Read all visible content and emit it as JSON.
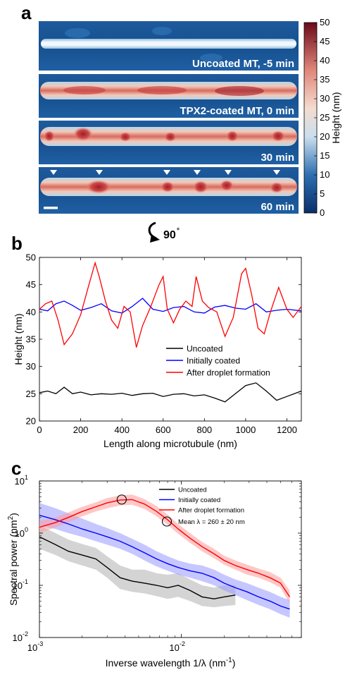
{
  "panel_a": {
    "letter": "a",
    "images": [
      {
        "label": "Uncoated MT, -5 min"
      },
      {
        "label": "TPX2-coated MT, 0 min"
      },
      {
        "label": "30 min"
      },
      {
        "label": "60 min"
      }
    ],
    "colorbar": {
      "label": "Height (nm)",
      "ticks": [
        "0",
        "5",
        "10",
        "15",
        "20",
        "25",
        "30",
        "35",
        "40",
        "45",
        "50"
      ],
      "range": [
        0,
        50
      ]
    },
    "rotation_label": "90",
    "rotation_degree_mark": "°"
  },
  "chart_data": [
    {
      "panel": "b",
      "type": "line",
      "xlabel": "Length along microtubule (nm)",
      "ylabel": "Height (nm)",
      "xlim": [
        0,
        1270
      ],
      "ylim": [
        20,
        50
      ],
      "xticks": [
        0,
        200,
        400,
        600,
        800,
        1000,
        1200
      ],
      "yticks": [
        20,
        25,
        30,
        35,
        40,
        45,
        50
      ],
      "legend_position": "lower-right",
      "grid": false,
      "series": [
        {
          "name": "Uncoated",
          "color": "#000000",
          "x": [
            0,
            40,
            80,
            120,
            160,
            200,
            250,
            300,
            350,
            400,
            450,
            500,
            550,
            600,
            650,
            700,
            750,
            800,
            850,
            900,
            950,
            1000,
            1050,
            1100,
            1150,
            1200,
            1270
          ],
          "y": [
            25.2,
            25.5,
            25.0,
            26.2,
            25.0,
            25.3,
            24.8,
            25.0,
            24.9,
            25.1,
            24.7,
            25.0,
            25.1,
            24.5,
            24.9,
            25.0,
            24.6,
            24.8,
            24.2,
            23.5,
            25.0,
            26.5,
            27.0,
            25.5,
            23.8,
            24.5,
            25.5
          ]
        },
        {
          "name": "Initially coated",
          "color": "#0000ff",
          "x": [
            0,
            40,
            80,
            120,
            160,
            200,
            250,
            300,
            350,
            400,
            450,
            500,
            550,
            600,
            650,
            700,
            750,
            800,
            850,
            900,
            950,
            1000,
            1050,
            1100,
            1150,
            1200,
            1270
          ],
          "y": [
            40.5,
            40.2,
            41.5,
            42.0,
            41.2,
            40.3,
            40.8,
            41.5,
            40.2,
            39.8,
            41.0,
            42.5,
            40.5,
            40.1,
            40.8,
            41.0,
            40.0,
            39.8,
            40.9,
            41.2,
            40.7,
            40.5,
            41.5,
            40.0,
            40.3,
            40.5,
            40.2
          ]
        },
        {
          "name": "After droplet formation",
          "color": "#ff0000",
          "x": [
            0,
            30,
            60,
            90,
            120,
            160,
            200,
            240,
            270,
            290,
            320,
            350,
            380,
            410,
            440,
            470,
            500,
            540,
            580,
            600,
            620,
            650,
            680,
            710,
            740,
            760,
            790,
            820,
            860,
            900,
            940,
            980,
            1000,
            1030,
            1060,
            1090,
            1120,
            1160,
            1200,
            1230,
            1270
          ],
          "y": [
            40.5,
            41.5,
            42.0,
            38.5,
            34.0,
            36.0,
            39.5,
            45.0,
            49.0,
            46.5,
            42.0,
            38.5,
            37.0,
            41.0,
            40.0,
            33.5,
            37.5,
            41.0,
            45.0,
            46.5,
            40.5,
            38.0,
            40.5,
            42.0,
            41.0,
            46.5,
            42.0,
            40.8,
            40.0,
            35.5,
            39.0,
            47.0,
            48.0,
            43.0,
            37.0,
            36.0,
            40.0,
            44.5,
            40.5,
            39.0,
            41.0
          ]
        }
      ]
    },
    {
      "panel": "c",
      "type": "line",
      "xscale": "log",
      "yscale": "log",
      "xlabel": "Inverse wavelength 1/λ (nm",
      "xlabel_sup": "-1",
      "xlabel_end": ")",
      "ylabel": "Spectral power (nm",
      "ylabel_sup": "2",
      "ylabel_end": ")",
      "xlim": [
        0.001,
        0.07
      ],
      "ylim": [
        0.01,
        10
      ],
      "xticks": [
        {
          "base": "10",
          "exp": "-3",
          "value": 0.001
        },
        {
          "base": "10",
          "exp": "-2",
          "value": 0.01
        }
      ],
      "yticks": [
        {
          "base": "10",
          "exp": "-2",
          "value": 0.01
        },
        {
          "base": "10",
          "exp": "-1",
          "value": 0.1
        },
        {
          "base": "10",
          "exp": "0",
          "value": 1
        },
        {
          "base": "10",
          "exp": "1",
          "value": 10
        }
      ],
      "legend_position": "top-right",
      "grid": false,
      "series": [
        {
          "name": "Uncoated",
          "color": "#000000",
          "band_color": "#b0b0b0",
          "x": [
            0.001,
            0.0013,
            0.0016,
            0.002,
            0.0025,
            0.003,
            0.0037,
            0.0045,
            0.0055,
            0.0067,
            0.008,
            0.0095,
            0.0115,
            0.014,
            0.017,
            0.02,
            0.024
          ],
          "y": [
            0.85,
            0.6,
            0.45,
            0.38,
            0.32,
            0.22,
            0.14,
            0.12,
            0.11,
            0.1,
            0.09,
            0.1,
            0.08,
            0.06,
            0.055,
            0.06,
            0.065
          ],
          "lower": [
            0.5,
            0.38,
            0.29,
            0.24,
            0.2,
            0.14,
            0.085,
            0.075,
            0.07,
            0.062,
            0.055,
            0.06,
            0.05,
            0.04,
            0.038,
            0.04,
            0.042
          ],
          "upper": [
            1.4,
            1.0,
            0.75,
            0.62,
            0.52,
            0.36,
            0.24,
            0.2,
            0.2,
            0.17,
            0.16,
            0.17,
            0.13,
            0.1,
            0.09,
            0.1,
            0.1
          ]
        },
        {
          "name": "Initially coated",
          "color": "#0000ff",
          "band_color": "#9999ff",
          "x": [
            0.001,
            0.0013,
            0.0016,
            0.002,
            0.0025,
            0.003,
            0.0037,
            0.0045,
            0.0055,
            0.0067,
            0.008,
            0.0095,
            0.0115,
            0.014,
            0.017,
            0.02,
            0.024,
            0.029,
            0.035,
            0.042,
            0.05,
            0.058
          ],
          "y": [
            2.2,
            1.8,
            1.5,
            1.2,
            1.0,
            0.85,
            0.7,
            0.55,
            0.42,
            0.32,
            0.26,
            0.22,
            0.19,
            0.17,
            0.14,
            0.11,
            0.09,
            0.075,
            0.06,
            0.05,
            0.04,
            0.035
          ],
          "lower": [
            1.4,
            1.2,
            1.0,
            0.85,
            0.7,
            0.6,
            0.5,
            0.4,
            0.3,
            0.23,
            0.19,
            0.16,
            0.14,
            0.12,
            0.1,
            0.08,
            0.065,
            0.052,
            0.042,
            0.035,
            0.028,
            0.024
          ],
          "upper": [
            3.8,
            3.0,
            2.4,
            1.9,
            1.5,
            1.25,
            1.0,
            0.78,
            0.6,
            0.45,
            0.36,
            0.3,
            0.26,
            0.24,
            0.2,
            0.16,
            0.13,
            0.11,
            0.09,
            0.075,
            0.06,
            0.052
          ]
        },
        {
          "name": "After droplet formation",
          "color": "#ff0000",
          "band_color": "#ff9999",
          "x": [
            0.001,
            0.0013,
            0.0016,
            0.002,
            0.0025,
            0.003,
            0.0037,
            0.0045,
            0.0055,
            0.0067,
            0.008,
            0.0095,
            0.0115,
            0.014,
            0.017,
            0.02,
            0.024,
            0.029,
            0.035,
            0.042,
            0.05,
            0.058
          ],
          "y": [
            1.3,
            1.6,
            2.0,
            2.6,
            3.2,
            3.8,
            4.3,
            4.4,
            3.6,
            2.6,
            1.8,
            1.2,
            0.8,
            0.55,
            0.4,
            0.3,
            0.24,
            0.2,
            0.17,
            0.14,
            0.11,
            0.06
          ],
          "lower": [
            1.0,
            1.3,
            1.6,
            2.1,
            2.6,
            3.0,
            3.4,
            3.5,
            2.9,
            2.1,
            1.45,
            0.97,
            0.65,
            0.45,
            0.33,
            0.25,
            0.2,
            0.16,
            0.14,
            0.115,
            0.09,
            0.045
          ],
          "upper": [
            1.7,
            2.0,
            2.5,
            3.2,
            3.9,
            4.7,
            5.3,
            5.5,
            4.5,
            3.3,
            2.25,
            1.5,
            1.0,
            0.68,
            0.5,
            0.37,
            0.3,
            0.25,
            0.21,
            0.18,
            0.14,
            0.08
          ]
        }
      ],
      "annotation": {
        "label": "Mean λ = 260 ± 20 nm",
        "x": 0.0038,
        "y": 4.4
      }
    }
  ]
}
